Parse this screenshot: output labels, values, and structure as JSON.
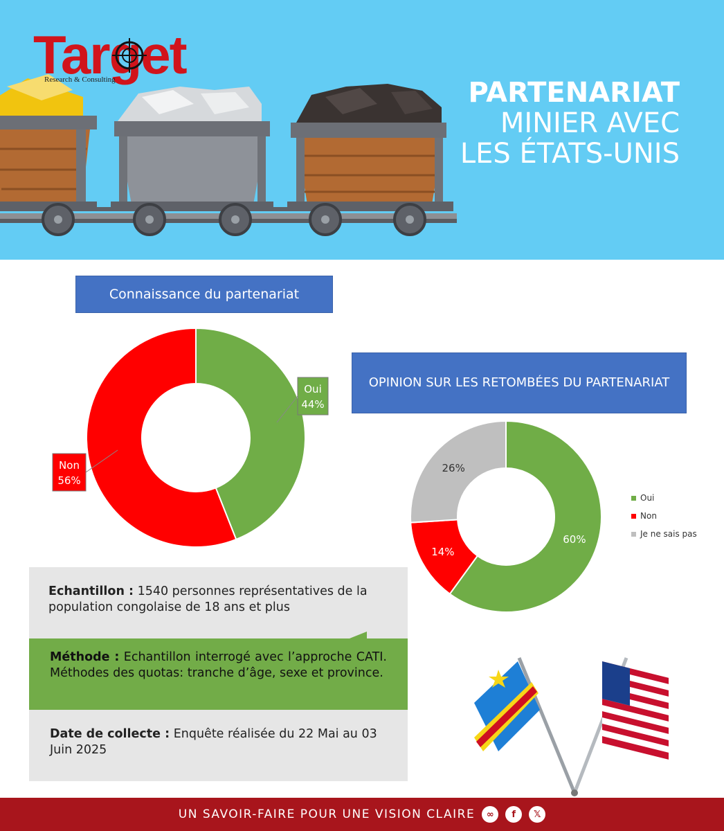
{
  "brand": {
    "name": "Target",
    "tagline": "Research & Consulting"
  },
  "hero": {
    "title_bold": "PARTENARIAT",
    "title_line2": "MINIER AVEC",
    "title_line3": "LES ÉTATS-UNIS"
  },
  "colors": {
    "oui": "#70ad47",
    "non": "#ff0000",
    "nsp": "#bfbfbf",
    "title_box": "#4472c4",
    "footer": "#a8151c",
    "sky": "#63ccf4"
  },
  "chart_data": [
    {
      "type": "pie",
      "title": "Connaissance du partenariat",
      "categories": [
        "Oui",
        "Non"
      ],
      "values": [
        44,
        56
      ],
      "labels": [
        "44%",
        "56%"
      ],
      "legend": "none"
    },
    {
      "type": "pie",
      "title": "OPINION SUR LES RETOMBÉES DU PARTENARIAT",
      "categories": [
        "Oui",
        "Non",
        "Je ne sais pas"
      ],
      "values": [
        60,
        14,
        26
      ],
      "labels": [
        "60%",
        "14%",
        "26%"
      ],
      "legend": "right"
    }
  ],
  "info": {
    "echantillon_label": "Echantillon :",
    "echantillon_text": "1540 personnes représentatives de la population congolaise de 18 ans et plus",
    "methode_label": "Méthode :",
    "methode_text": "Echantillon interrogé avec l’approche CATI. Méthodes des quotas: tranche d’âge, sexe et province.",
    "date_label": "Date de collecte :",
    "date_text": "Enquête réalisée du 22 Mai au 03 Juin 2025"
  },
  "footer": {
    "slogan": "UN SAVOIR-FAIRE POUR UNE VISION CLAIRE",
    "icons": [
      "globe-icon",
      "facebook-icon",
      "x-icon"
    ]
  }
}
